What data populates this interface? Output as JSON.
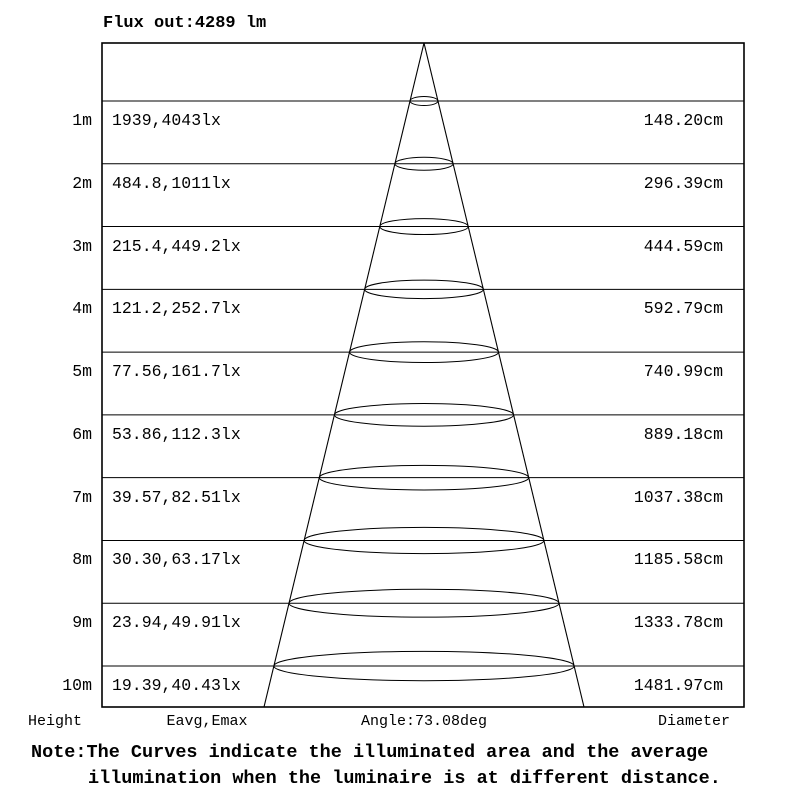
{
  "page": {
    "background": "#ffffff",
    "line_color": "#000000",
    "text_color": "#000000"
  },
  "title": "Flux out:4289 lm",
  "chart_data": {
    "type": "cone-diagram",
    "title": "Flux out:4289 lm",
    "flux_out_lm": 4289,
    "beam_angle_deg": 73.08,
    "columns": [
      "Height",
      "Eavg,Emax",
      "Diameter"
    ],
    "rows": [
      {
        "height": "1m",
        "eavg_emax": "1939,4043lx",
        "diameter": "148.20cm"
      },
      {
        "height": "2m",
        "eavg_emax": "484.8,1011lx",
        "diameter": "296.39cm"
      },
      {
        "height": "3m",
        "eavg_emax": "215.4,449.2lx",
        "diameter": "444.59cm"
      },
      {
        "height": "4m",
        "eavg_emax": "121.2,252.7lx",
        "diameter": "592.79cm"
      },
      {
        "height": "5m",
        "eavg_emax": "77.56,161.7lx",
        "diameter": "740.99cm"
      },
      {
        "height": "6m",
        "eavg_emax": "53.86,112.3lx",
        "diameter": "889.18cm"
      },
      {
        "height": "7m",
        "eavg_emax": "39.57,82.51lx",
        "diameter": "1037.38cm"
      },
      {
        "height": "8m",
        "eavg_emax": "30.30,63.17lx",
        "diameter": "1185.58cm"
      },
      {
        "height": "9m",
        "eavg_emax": "23.94,49.91lx",
        "diameter": "1333.78cm"
      },
      {
        "height": "10m",
        "eavg_emax": "19.39,40.43lx",
        "diameter": "1481.97cm"
      }
    ],
    "layout_hints": {
      "grid": "horizontal lines per meter",
      "cone_apex": "top center",
      "ellipses": "beam cross-section at each height"
    }
  },
  "footer": {
    "height_label": "Height",
    "eavg_label": "Eavg,Emax",
    "angle_label": "Angle:73.08deg",
    "diameter_label": "Diameter"
  },
  "note": {
    "line1": "Note:The Curves indicate the illuminated area and the average",
    "line2": "illumination when the luminaire is at different distance."
  }
}
